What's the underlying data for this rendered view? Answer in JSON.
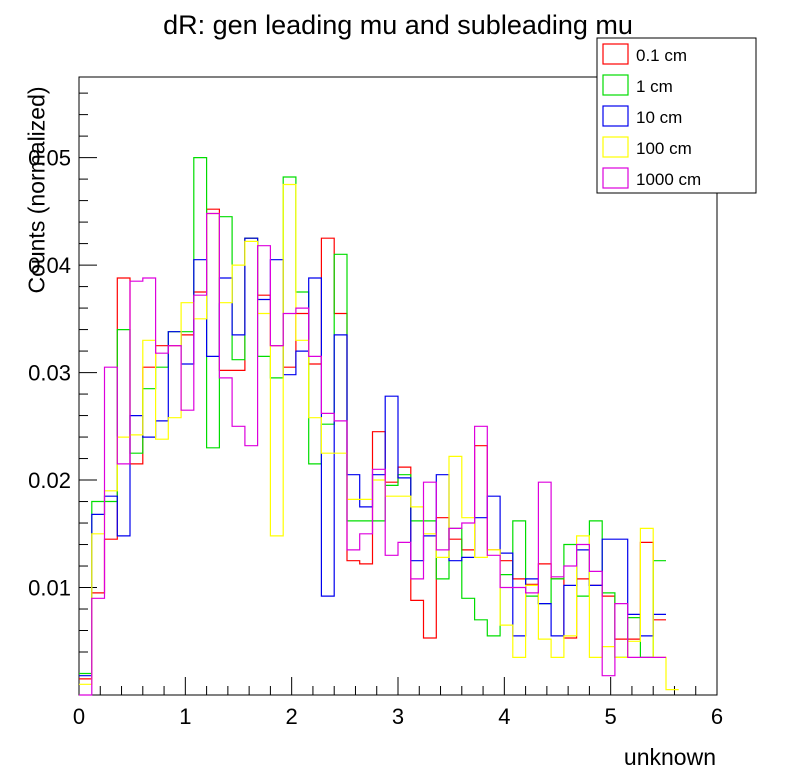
{
  "chart_data": {
    "type": "line",
    "title": "dR: gen leading mu and subleading mu",
    "xlabel": "unknown",
    "ylabel": "Counts (normalized)",
    "xlim": [
      0,
      6
    ],
    "ylim": [
      0,
      0.0575
    ],
    "xticks": [
      "0",
      "1",
      "2",
      "3",
      "4",
      "5",
      "6"
    ],
    "yticks": [
      "0.01",
      "0.02",
      "0.03",
      "0.04",
      "0.05"
    ],
    "bin_width": 0.12,
    "bin_edges_start": 0,
    "legend_position": "top-right",
    "series": [
      {
        "name": "0.1 cm",
        "color": "#ff0000",
        "values": [
          0.0015,
          0.0095,
          0.0145,
          0.0388,
          0.0215,
          0.0305,
          0.0325,
          0.0325,
          0.0335,
          0.0375,
          0.0452,
          0.0302,
          0.0302,
          0.0425,
          0.0372,
          0.0325,
          0.0305,
          0.0355,
          0.0308,
          0.0425,
          0.0355,
          0.0125,
          0.0122,
          0.0245,
          0.0198,
          0.0212,
          0.0088,
          0.0053,
          0.0165,
          0.0145,
          0.0135,
          0.0232,
          0.0135,
          0.0125,
          0.0108,
          0.0103,
          0.0122,
          0.0108,
          0.0053,
          0.0108,
          0.0102,
          0.0092,
          0.0052,
          0.0052,
          0.0142,
          0.007
        ]
      },
      {
        "name": "1 cm",
        "color": "#00dd00",
        "values": [
          0.002,
          0.018,
          0.018,
          0.034,
          0.0225,
          0.0285,
          0.0305,
          0.0338,
          0.0338,
          0.05,
          0.023,
          0.0445,
          0.0312,
          0.0425,
          0.0315,
          0.0295,
          0.0482,
          0.0375,
          0.0215,
          0.0252,
          0.041,
          0.0162,
          0.0162,
          0.0162,
          0.0195,
          0.0205,
          0.0162,
          0.0162,
          0.0108,
          0.0155,
          0.009,
          0.007,
          0.0055,
          0.0112,
          0.0162,
          0.0092,
          0.0085,
          0.0108,
          0.014,
          0.0092,
          0.0162,
          0.0095,
          0.0035,
          0.0072,
          0.0035,
          0.0125
        ]
      },
      {
        "name": "10 cm",
        "color": "#0000ee",
        "values": [
          0.0018,
          0.0168,
          0.0185,
          0.0148,
          0.026,
          0.024,
          0.0255,
          0.0338,
          0.0308,
          0.0405,
          0.0315,
          0.0388,
          0.0335,
          0.0425,
          0.0368,
          0.0405,
          0.0298,
          0.032,
          0.0388,
          0.0092,
          0.0335,
          0.0205,
          0.0175,
          0.0205,
          0.0278,
          0.0202,
          0.0125,
          0.0148,
          0.0205,
          0.0125,
          0.0128,
          0.0165,
          0.0185,
          0.0132,
          0.0055,
          0.0108,
          0.0085,
          0.0055,
          0.0102,
          0.0135,
          0.0102,
          0.0145,
          0.0145,
          0.0075,
          0.0055,
          0.0075
        ]
      },
      {
        "name": "100 cm",
        "color": "#ffff00",
        "values": [
          0.001,
          0.015,
          0.019,
          0.024,
          0.0242,
          0.033,
          0.0238,
          0.0258,
          0.0365,
          0.035,
          0.0448,
          0.0365,
          0.04,
          0.0422,
          0.0355,
          0.0148,
          0.0475,
          0.033,
          0.0258,
          0.0225,
          0.0225,
          0.0182,
          0.0182,
          0.02,
          0.0185,
          0.0185,
          0.0175,
          0.015,
          0.0128,
          0.0222,
          0.0165,
          0.0128,
          0.0135,
          0.0065,
          0.0035,
          0.0102,
          0.0052,
          0.0035,
          0.0055,
          0.0148,
          0.0035,
          0.0045,
          0.0035,
          0.005,
          0.0155,
          0.0035,
          0.0005
        ]
      },
      {
        "name": "1000 cm",
        "color": "#dd00dd",
        "values": [
          0.0,
          0.009,
          0.0305,
          0.0215,
          0.0385,
          0.0388,
          0.0318,
          0.0325,
          0.0265,
          0.0372,
          0.0448,
          0.0295,
          0.025,
          0.0232,
          0.0418,
          0.0325,
          0.0355,
          0.036,
          0.0315,
          0.0262,
          0.0255,
          0.0135,
          0.015,
          0.021,
          0.013,
          0.0142,
          0.0108,
          0.0198,
          0.0135,
          0.0155,
          0.016,
          0.025,
          0.013,
          0.01,
          0.01,
          0.0095,
          0.0198,
          0.011,
          0.012,
          0.014,
          0.0115,
          0.0018,
          0.0085,
          0.0035,
          0.0035,
          0.0035
        ]
      }
    ]
  }
}
